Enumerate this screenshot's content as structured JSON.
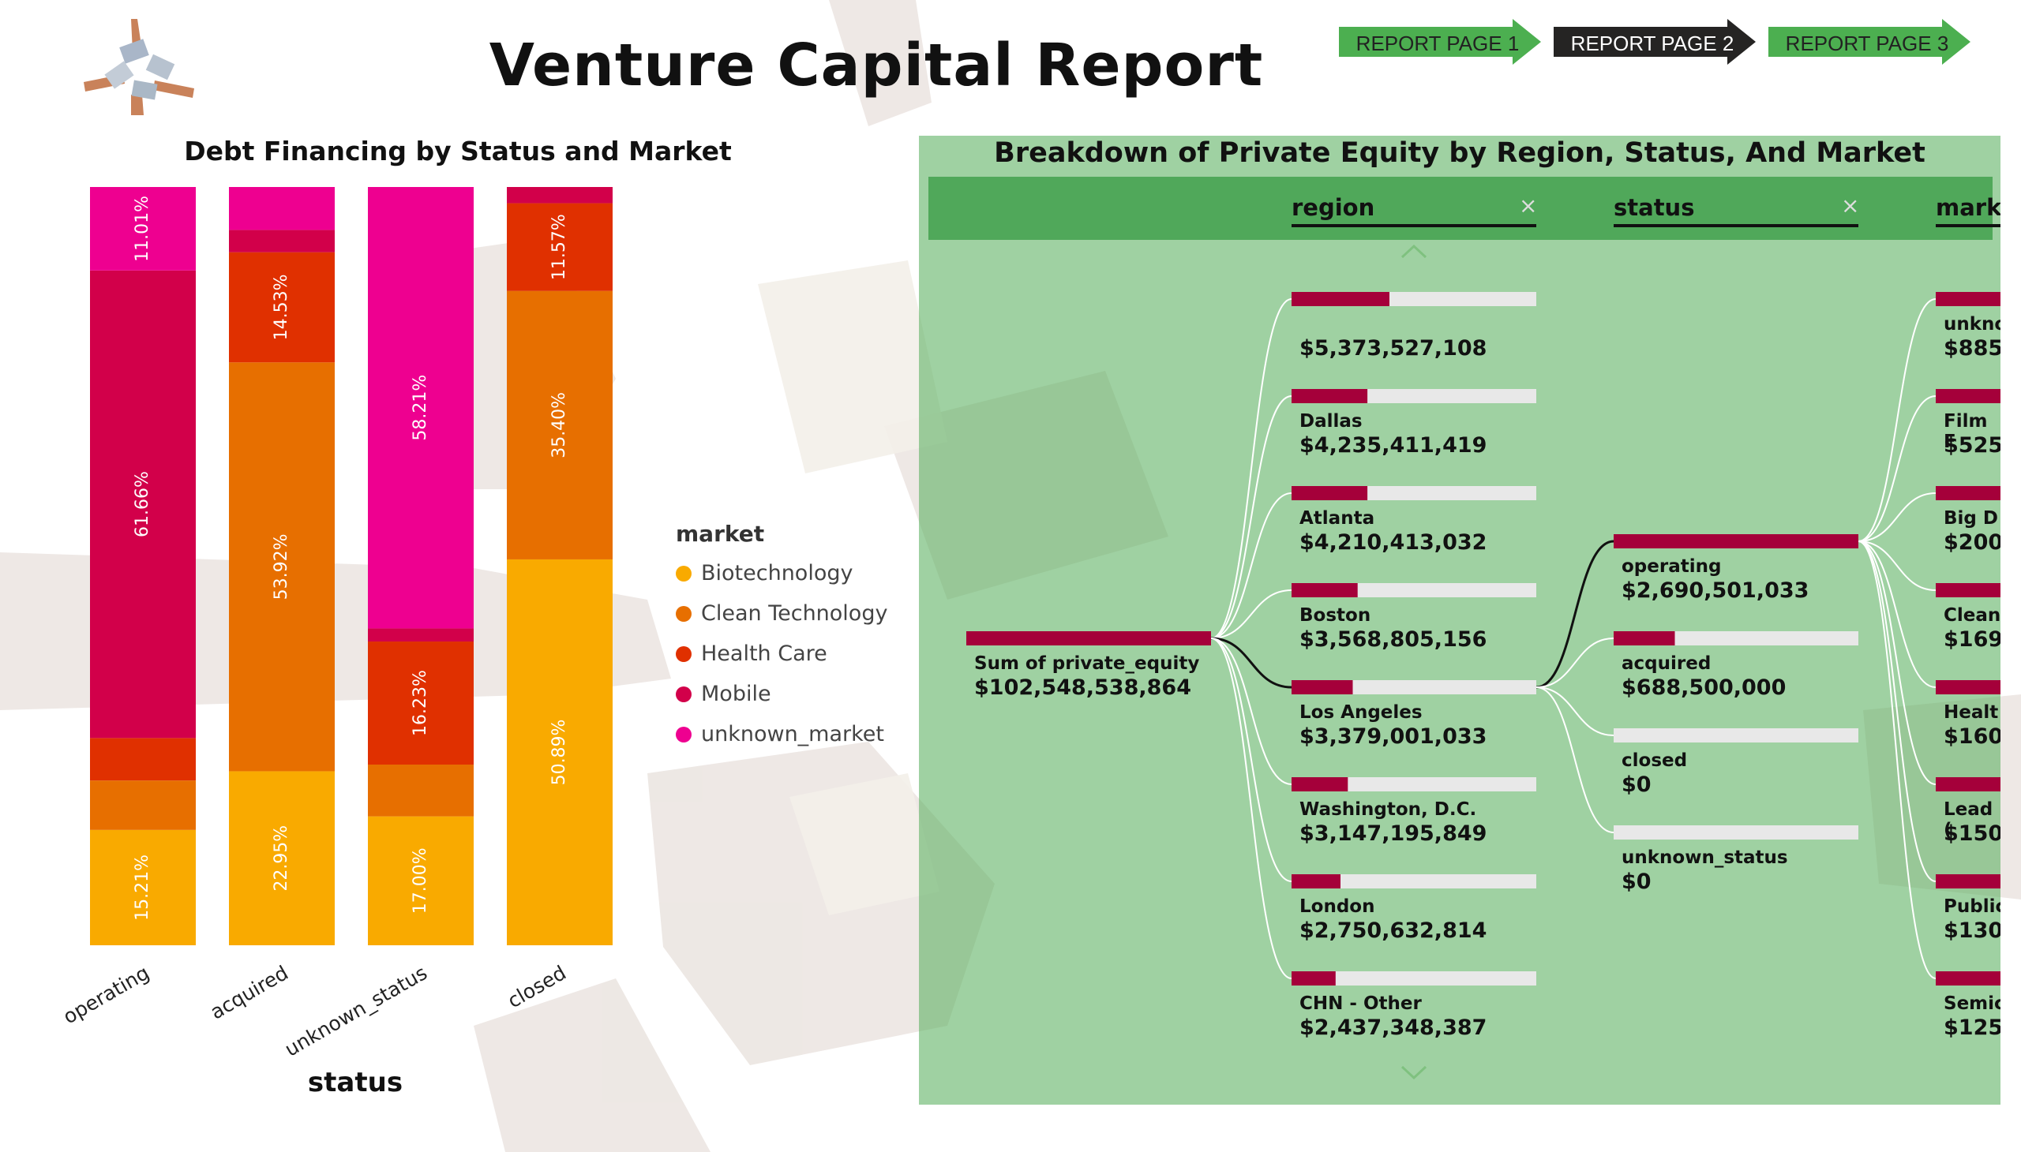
{
  "header": {
    "title": "Venture Capital Report",
    "nav": [
      {
        "label": "REPORT PAGE 1",
        "active": false
      },
      {
        "label": "REPORT PAGE 2",
        "active": true
      },
      {
        "label": "REPORT PAGE 3",
        "active": false
      }
    ]
  },
  "colors": {
    "nav_green": "#4caf50",
    "nav_dark": "#252423",
    "decomp_bar": "#a5003a",
    "decomp_track": "#e8e8e8",
    "Biotechnology": "#f9aa00",
    "Clean Technology": "#e76f00",
    "Health Care": "#e03000",
    "Mobile": "#d2004a",
    "unknown_market": "#ee0090"
  },
  "chart_data": [
    {
      "type": "bar",
      "stacked": "100%",
      "title": "Debt Financing by Status and Market",
      "xlabel": "status",
      "ylabel": "",
      "categories": [
        "operating",
        "acquired",
        "unknown_status",
        "closed"
      ],
      "legend_title": "market",
      "legend_position": "right",
      "series": [
        {
          "name": "Biotechnology",
          "values": [
            15.21,
            22.95,
            17.0,
            50.89
          ]
        },
        {
          "name": "Clean Technology",
          "values": [
            6.52,
            53.92,
            6.83,
            35.4
          ]
        },
        {
          "name": "Health Care",
          "values": [
            5.6,
            14.53,
            16.23,
            11.57
          ]
        },
        {
          "name": "Mobile",
          "values": [
            61.66,
            2.94,
            1.73,
            2.14
          ]
        },
        {
          "name": "unknown_market",
          "values": [
            11.01,
            5.66,
            58.21,
            0.0
          ]
        }
      ],
      "data_labels": [
        {
          "series": "Biotechnology",
          "category": "operating",
          "text": "15.21%"
        },
        {
          "series": "Mobile",
          "category": "operating",
          "text": "61.66%"
        },
        {
          "series": "unknown_market",
          "category": "operating",
          "text": "11.01%"
        },
        {
          "series": "Biotechnology",
          "category": "acquired",
          "text": "22.95%"
        },
        {
          "series": "Clean Technology",
          "category": "acquired",
          "text": "53.92%"
        },
        {
          "series": "Health Care",
          "category": "acquired",
          "text": "14.53%"
        },
        {
          "series": "Biotechnology",
          "category": "unknown_status",
          "text": "17.00%"
        },
        {
          "series": "Health Care",
          "category": "unknown_status",
          "text": "16.23%"
        },
        {
          "series": "unknown_market",
          "category": "unknown_status",
          "text": "58.21%"
        },
        {
          "series": "Biotechnology",
          "category": "closed",
          "text": "50.89%"
        },
        {
          "series": "Clean Technology",
          "category": "closed",
          "text": "35.40%"
        },
        {
          "series": "Health Care",
          "category": "closed",
          "text": "11.57%"
        }
      ]
    },
    {
      "type": "decomposition_tree",
      "title": "Breakdown of Private Equity by Region, Status, And Market",
      "levels": [
        "region",
        "status",
        "market"
      ],
      "root": {
        "label": "Sum of private_equity",
        "value": "$102,548,538,864",
        "fill": 1.0
      },
      "region": [
        {
          "label": "",
          "value": "$5,373,527,108",
          "fill": 0.4
        },
        {
          "label": "Dallas",
          "value": "$4,235,411,419",
          "fill": 0.31
        },
        {
          "label": "Atlanta",
          "value": "$4,210,413,032",
          "fill": 0.31
        },
        {
          "label": "Boston",
          "value": "$3,568,805,156",
          "fill": 0.27
        },
        {
          "label": "Los Angeles",
          "value": "$3,379,001,033",
          "fill": 0.25,
          "expanded": true
        },
        {
          "label": "Washington, D.C.",
          "value": "$3,147,195,849",
          "fill": 0.23
        },
        {
          "label": "London",
          "value": "$2,750,632,814",
          "fill": 0.2
        },
        {
          "label": "CHN - Other",
          "value": "$2,437,348,387",
          "fill": 0.18
        }
      ],
      "status": [
        {
          "label": "operating",
          "value": "$2,690,501,033",
          "fill": 1.0,
          "expanded": true
        },
        {
          "label": "acquired",
          "value": "$688,500,000",
          "fill": 0.25
        },
        {
          "label": "closed",
          "value": "$0",
          "fill": 0.0
        },
        {
          "label": "unknown_status",
          "value": "$0",
          "fill": 0.0
        }
      ],
      "market": [
        {
          "label": "unkno",
          "value": "$885",
          "fill": 1.0
        },
        {
          "label": "Film F",
          "value": "$525",
          "fill": 1.0
        },
        {
          "label": "Big D",
          "value": "$200",
          "fill": 1.0
        },
        {
          "label": "Clean",
          "value": "$169",
          "fill": 0.85
        },
        {
          "label": "Healt",
          "value": "$160",
          "fill": 0.8
        },
        {
          "label": "Lead (",
          "value": "$150",
          "fill": 0.75
        },
        {
          "label": "Public",
          "value": "$130",
          "fill": 0.65
        },
        {
          "label": "Semic",
          "value": "$125",
          "fill": 0.62
        }
      ]
    }
  ]
}
